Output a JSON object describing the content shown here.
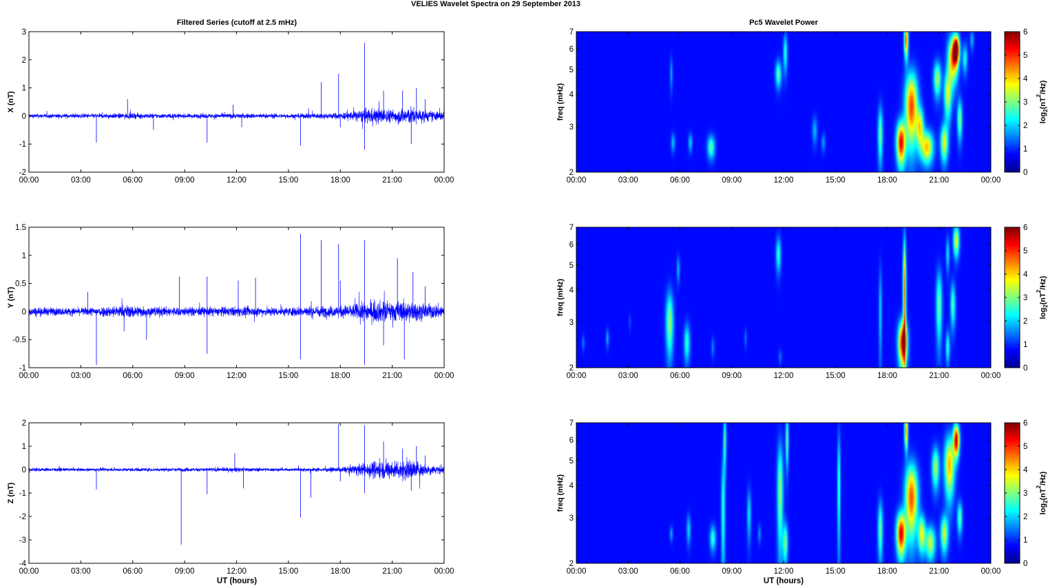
{
  "figure": {
    "title": "VELIES Wavelet Spectra on 29 September 2013",
    "left_title": "Filtered Series (cutoff at 2.5 mHz)",
    "right_title": "Pc5 Wavelet Power",
    "xlabel": "UT (hours)",
    "right_ylabel": "freq (mHz)",
    "colorbar_label_base": "log",
    "colorbar_label_sub": "2",
    "colorbar_label_open": "(nT",
    "colorbar_label_sup": "2",
    "colorbar_label_close": "/Hz)"
  },
  "colors": {
    "trace": "#0000ff",
    "axes": "#000000",
    "grid_bg": "#ffffff"
  },
  "chart_data": [
    {
      "type": "line",
      "ylabel": "X (nT)",
      "x_ticks": [
        "00:00",
        "03:00",
        "06:00",
        "09:00",
        "12:00",
        "15:00",
        "18:00",
        "21:00",
        "00:00"
      ],
      "xlim": [
        0,
        24
      ],
      "ylim": [
        -2,
        3
      ],
      "y_ticks": [
        "-2",
        "-1",
        "0",
        "1",
        "2",
        "3"
      ],
      "noise_amplitude": [
        [
          0,
          0.12
        ],
        [
          3,
          0.12
        ],
        [
          6,
          0.15
        ],
        [
          9,
          0.12
        ],
        [
          12,
          0.14
        ],
        [
          15,
          0.12
        ],
        [
          16,
          0.14
        ],
        [
          17,
          0.16
        ],
        [
          18,
          0.18
        ],
        [
          19,
          0.3
        ],
        [
          20,
          0.45
        ],
        [
          21,
          0.35
        ],
        [
          22,
          0.5
        ],
        [
          23,
          0.3
        ],
        [
          24,
          0.25
        ]
      ],
      "spikes": [
        [
          3.9,
          -0.95
        ],
        [
          5.7,
          0.6
        ],
        [
          7.2,
          -0.5
        ],
        [
          10.3,
          -0.95
        ],
        [
          11.8,
          0.4
        ],
        [
          12.3,
          -0.4
        ],
        [
          15.7,
          -1.05
        ],
        [
          16.9,
          1.2
        ],
        [
          17.9,
          1.5
        ],
        [
          18.0,
          -0.4
        ],
        [
          19.4,
          2.6
        ],
        [
          19.4,
          -1.2
        ],
        [
          20.5,
          0.9
        ],
        [
          21.6,
          0.9
        ],
        [
          22.1,
          -1.0
        ],
        [
          22.4,
          1.0
        ],
        [
          22.9,
          0.6
        ]
      ]
    },
    {
      "type": "line",
      "ylabel": "Y (nT)",
      "x_ticks": [
        "00:00",
        "03:00",
        "06:00",
        "09:00",
        "12:00",
        "15:00",
        "18:00",
        "21:00",
        "00:00"
      ],
      "xlim": [
        0,
        24
      ],
      "ylim": [
        -1,
        1.5
      ],
      "y_ticks": [
        "-1",
        "-0.5",
        "0",
        "0.5",
        "1",
        "1.5"
      ],
      "noise_amplitude": [
        [
          0,
          0.12
        ],
        [
          3,
          0.1
        ],
        [
          5.5,
          0.18
        ],
        [
          7,
          0.14
        ],
        [
          9,
          0.12
        ],
        [
          12,
          0.13
        ],
        [
          15,
          0.12
        ],
        [
          16,
          0.15
        ],
        [
          18,
          0.16
        ],
        [
          19,
          0.22
        ],
        [
          20,
          0.3
        ],
        [
          21,
          0.28
        ],
        [
          22,
          0.28
        ],
        [
          23,
          0.2
        ],
        [
          24,
          0.2
        ]
      ],
      "spikes": [
        [
          3.4,
          0.35
        ],
        [
          3.9,
          -0.95
        ],
        [
          5.5,
          -0.35
        ],
        [
          6.8,
          -0.5
        ],
        [
          8.7,
          0.62
        ],
        [
          10.3,
          0.62
        ],
        [
          10.3,
          -0.75
        ],
        [
          12.1,
          0.55
        ],
        [
          13.1,
          0.6
        ],
        [
          15.7,
          1.38
        ],
        [
          15.7,
          -0.85
        ],
        [
          16.9,
          1.27
        ],
        [
          17.9,
          1.2
        ],
        [
          18.0,
          0.55
        ],
        [
          19.4,
          1.27
        ],
        [
          19.4,
          -0.95
        ],
        [
          20.5,
          -0.6
        ],
        [
          21.3,
          0.95
        ],
        [
          21.7,
          -0.85
        ],
        [
          22.2,
          0.7
        ],
        [
          22.9,
          0.45
        ]
      ]
    },
    {
      "type": "line",
      "ylabel": "Z (nT)",
      "x_ticks": [
        "00:00",
        "03:00",
        "06:00",
        "09:00",
        "12:00",
        "15:00",
        "18:00",
        "21:00",
        "00:00"
      ],
      "xlim": [
        0,
        24
      ],
      "ylim": [
        -4,
        2
      ],
      "y_ticks": [
        "-4",
        "-3",
        "-2",
        "-1",
        "0",
        "1",
        "2"
      ],
      "noise_amplitude": [
        [
          0,
          0.12
        ],
        [
          3,
          0.1
        ],
        [
          6,
          0.12
        ],
        [
          9,
          0.12
        ],
        [
          12,
          0.14
        ],
        [
          15,
          0.1
        ],
        [
          16,
          0.12
        ],
        [
          18,
          0.15
        ],
        [
          19,
          0.35
        ],
        [
          20,
          0.6
        ],
        [
          21,
          0.6
        ],
        [
          22,
          0.7
        ],
        [
          23,
          0.35
        ],
        [
          24,
          0.25
        ]
      ],
      "spikes": [
        [
          3.9,
          -0.85
        ],
        [
          8.8,
          -3.2
        ],
        [
          10.3,
          -1.05
        ],
        [
          11.9,
          0.7
        ],
        [
          12.4,
          -0.8
        ],
        [
          15.7,
          -2.05
        ],
        [
          16.3,
          -1.2
        ],
        [
          17.9,
          1.95
        ],
        [
          18.0,
          -0.5
        ],
        [
          19.4,
          1.9
        ],
        [
          19.4,
          -1.0
        ],
        [
          20.5,
          1.2
        ],
        [
          21.6,
          0.9
        ],
        [
          22.1,
          -0.9
        ],
        [
          22.4,
          1.0
        ],
        [
          22.9,
          0.6
        ]
      ]
    },
    {
      "type": "heatmap",
      "ylabel": "freq (mHz)",
      "x_ticks": [
        "00:00",
        "03:00",
        "06:00",
        "09:00",
        "12:00",
        "15:00",
        "18:00",
        "21:00",
        "00:00"
      ],
      "xlim": [
        0,
        24
      ],
      "ylim": [
        2,
        7
      ],
      "y_scale": "log",
      "y_ticks": [
        "2",
        "3",
        "4",
        "5",
        "6",
        "7"
      ],
      "colorbar_ticks": [
        "0",
        "1",
        "2",
        "3",
        "4",
        "5",
        "6"
      ],
      "clim": [
        0,
        6
      ],
      "blobs": [
        {
          "t": 5.5,
          "f": 4.8,
          "dt": 0.05,
          "df": 0.5,
          "v": 1.2
        },
        {
          "t": 5.6,
          "f": 2.6,
          "dt": 0.08,
          "df": 0.15,
          "v": 1.3
        },
        {
          "t": 6.6,
          "f": 2.6,
          "dt": 0.08,
          "df": 0.15,
          "v": 1.4
        },
        {
          "t": 7.8,
          "f": 2.5,
          "dt": 0.15,
          "df": 0.18,
          "v": 2.3
        },
        {
          "t": 11.7,
          "f": 4.8,
          "dt": 0.12,
          "df": 0.4,
          "v": 2.3
        },
        {
          "t": 12.1,
          "f": 5.8,
          "dt": 0.08,
          "df": 0.7,
          "v": 2.0
        },
        {
          "t": 13.8,
          "f": 2.9,
          "dt": 0.1,
          "df": 0.25,
          "v": 1.2
        },
        {
          "t": 14.3,
          "f": 2.6,
          "dt": 0.08,
          "df": 0.15,
          "v": 1.0
        },
        {
          "t": 17.6,
          "f": 2.8,
          "dt": 0.1,
          "df": 0.5,
          "v": 2.4
        },
        {
          "t": 18.8,
          "f": 2.6,
          "dt": 0.18,
          "df": 0.35,
          "v": 5.2
        },
        {
          "t": 19.1,
          "f": 6.5,
          "dt": 0.08,
          "df": 0.7,
          "v": 4.6
        },
        {
          "t": 19.4,
          "f": 3.6,
          "dt": 0.25,
          "df": 0.8,
          "v": 4.7
        },
        {
          "t": 19.9,
          "f": 3.0,
          "dt": 0.15,
          "df": 0.35,
          "v": 3.2
        },
        {
          "t": 20.3,
          "f": 2.5,
          "dt": 0.25,
          "df": 0.25,
          "v": 3.8
        },
        {
          "t": 20.9,
          "f": 4.6,
          "dt": 0.15,
          "df": 0.5,
          "v": 2.8
        },
        {
          "t": 21.3,
          "f": 2.6,
          "dt": 0.15,
          "df": 0.3,
          "v": 3.2
        },
        {
          "t": 21.5,
          "f": 4.0,
          "dt": 0.15,
          "df": 0.6,
          "v": 3.0
        },
        {
          "t": 21.8,
          "f": 5.5,
          "dt": 0.2,
          "df": 0.8,
          "v": 4.3
        },
        {
          "t": 22.0,
          "f": 6.0,
          "dt": 0.12,
          "df": 0.5,
          "v": 5.8
        },
        {
          "t": 22.2,
          "f": 3.2,
          "dt": 0.1,
          "df": 0.4,
          "v": 2.6
        },
        {
          "t": 22.5,
          "f": 5.5,
          "dt": 0.1,
          "df": 0.5,
          "v": 1.8
        },
        {
          "t": 22.9,
          "f": 6.5,
          "dt": 0.08,
          "df": 0.4,
          "v": 1.2
        }
      ]
    },
    {
      "type": "heatmap",
      "ylabel": "freq (mHz)",
      "x_ticks": [
        "00:00",
        "03:00",
        "06:00",
        "09:00",
        "12:00",
        "15:00",
        "18:00",
        "21:00",
        "00:00"
      ],
      "xlim": [
        0,
        24
      ],
      "ylim": [
        2,
        7
      ],
      "y_scale": "log",
      "y_ticks": [
        "2",
        "3",
        "4",
        "5",
        "6",
        "7"
      ],
      "colorbar_ticks": [
        "0",
        "1",
        "2",
        "3",
        "4",
        "5",
        "6"
      ],
      "clim": [
        0,
        6
      ],
      "blobs": [
        {
          "t": 0.4,
          "f": 2.5,
          "dt": 0.05,
          "df": 0.12,
          "v": 0.9
        },
        {
          "t": 1.8,
          "f": 2.6,
          "dt": 0.06,
          "df": 0.15,
          "v": 1.2
        },
        {
          "t": 3.1,
          "f": 3.0,
          "dt": 0.04,
          "df": 0.15,
          "v": 0.6
        },
        {
          "t": 5.4,
          "f": 3.0,
          "dt": 0.15,
          "df": 0.6,
          "v": 2.7
        },
        {
          "t": 5.9,
          "f": 4.8,
          "dt": 0.06,
          "df": 0.4,
          "v": 1.3
        },
        {
          "t": 6.4,
          "f": 2.5,
          "dt": 0.12,
          "df": 0.3,
          "v": 2.0
        },
        {
          "t": 7.9,
          "f": 2.4,
          "dt": 0.06,
          "df": 0.15,
          "v": 0.9
        },
        {
          "t": 9.8,
          "f": 2.6,
          "dt": 0.05,
          "df": 0.15,
          "v": 0.8
        },
        {
          "t": 11.7,
          "f": 5.5,
          "dt": 0.1,
          "df": 0.6,
          "v": 2.0
        },
        {
          "t": 11.8,
          "f": 2.2,
          "dt": 0.06,
          "df": 0.1,
          "v": 0.8
        },
        {
          "t": 17.6,
          "f": 3.3,
          "dt": 0.06,
          "df": 1.0,
          "v": 1.5
        },
        {
          "t": 18.9,
          "f": 2.5,
          "dt": 0.18,
          "df": 0.35,
          "v": 5.4
        },
        {
          "t": 19.0,
          "f": 4.0,
          "dt": 0.06,
          "df": 1.5,
          "v": 4.3
        },
        {
          "t": 21.0,
          "f": 3.5,
          "dt": 0.12,
          "df": 0.8,
          "v": 2.4
        },
        {
          "t": 21.5,
          "f": 2.4,
          "dt": 0.08,
          "df": 0.25,
          "v": 2.0
        },
        {
          "t": 21.8,
          "f": 3.5,
          "dt": 0.1,
          "df": 0.5,
          "v": 2.2
        },
        {
          "t": 22.0,
          "f": 6.2,
          "dt": 0.12,
          "df": 0.6,
          "v": 3.3
        },
        {
          "t": 21.5,
          "f": 5.5,
          "dt": 0.07,
          "df": 0.6,
          "v": 1.6
        }
      ]
    },
    {
      "type": "heatmap",
      "ylabel": "freq (mHz)",
      "x_ticks": [
        "00:00",
        "03:00",
        "06:00",
        "09:00",
        "12:00",
        "15:00",
        "18:00",
        "21:00",
        "00:00"
      ],
      "xlim": [
        0,
        24
      ],
      "ylim": [
        2,
        7
      ],
      "y_scale": "log",
      "y_ticks": [
        "2",
        "3",
        "4",
        "5",
        "6",
        "7"
      ],
      "colorbar_ticks": [
        "0",
        "1",
        "2",
        "3",
        "4",
        "5",
        "6"
      ],
      "clim": [
        0,
        6
      ],
      "blobs": [
        {
          "t": 5.5,
          "f": 2.6,
          "dt": 0.06,
          "df": 0.12,
          "v": 1.2
        },
        {
          "t": 6.5,
          "f": 2.7,
          "dt": 0.08,
          "df": 0.25,
          "v": 1.5
        },
        {
          "t": 7.9,
          "f": 2.5,
          "dt": 0.12,
          "df": 0.2,
          "v": 2.0
        },
        {
          "t": 8.5,
          "f": 3.2,
          "dt": 0.08,
          "df": 1.2,
          "v": 2.0
        },
        {
          "t": 8.6,
          "f": 6.0,
          "dt": 0.06,
          "df": 1.0,
          "v": 2.2
        },
        {
          "t": 10.0,
          "f": 3.1,
          "dt": 0.08,
          "df": 0.5,
          "v": 1.6
        },
        {
          "t": 10.6,
          "f": 2.6,
          "dt": 0.06,
          "df": 0.15,
          "v": 1.0
        },
        {
          "t": 11.8,
          "f": 3.8,
          "dt": 0.12,
          "df": 1.3,
          "v": 2.6
        },
        {
          "t": 12.1,
          "f": 2.4,
          "dt": 0.1,
          "df": 0.3,
          "v": 2.5
        },
        {
          "t": 12.2,
          "f": 6.0,
          "dt": 0.06,
          "df": 1.0,
          "v": 2.5
        },
        {
          "t": 15.2,
          "f": 4.0,
          "dt": 0.06,
          "df": 1.5,
          "v": 2.2
        },
        {
          "t": 17.6,
          "f": 2.7,
          "dt": 0.1,
          "df": 0.5,
          "v": 2.4
        },
        {
          "t": 18.8,
          "f": 2.6,
          "dt": 0.18,
          "df": 0.35,
          "v": 5.3
        },
        {
          "t": 19.1,
          "f": 6.5,
          "dt": 0.07,
          "df": 0.7,
          "v": 4.2
        },
        {
          "t": 19.4,
          "f": 3.6,
          "dt": 0.25,
          "df": 0.8,
          "v": 4.6
        },
        {
          "t": 20.0,
          "f": 2.6,
          "dt": 0.15,
          "df": 0.3,
          "v": 3.2
        },
        {
          "t": 20.5,
          "f": 2.4,
          "dt": 0.2,
          "df": 0.25,
          "v": 3.0
        },
        {
          "t": 20.8,
          "f": 4.7,
          "dt": 0.15,
          "df": 0.6,
          "v": 2.8
        },
        {
          "t": 21.3,
          "f": 2.6,
          "dt": 0.15,
          "df": 0.3,
          "v": 3.0
        },
        {
          "t": 21.6,
          "f": 4.8,
          "dt": 0.2,
          "df": 0.9,
          "v": 3.9
        },
        {
          "t": 22.0,
          "f": 6.0,
          "dt": 0.12,
          "df": 0.6,
          "v": 5.6
        },
        {
          "t": 22.2,
          "f": 3.0,
          "dt": 0.1,
          "df": 0.3,
          "v": 2.4
        }
      ]
    }
  ]
}
